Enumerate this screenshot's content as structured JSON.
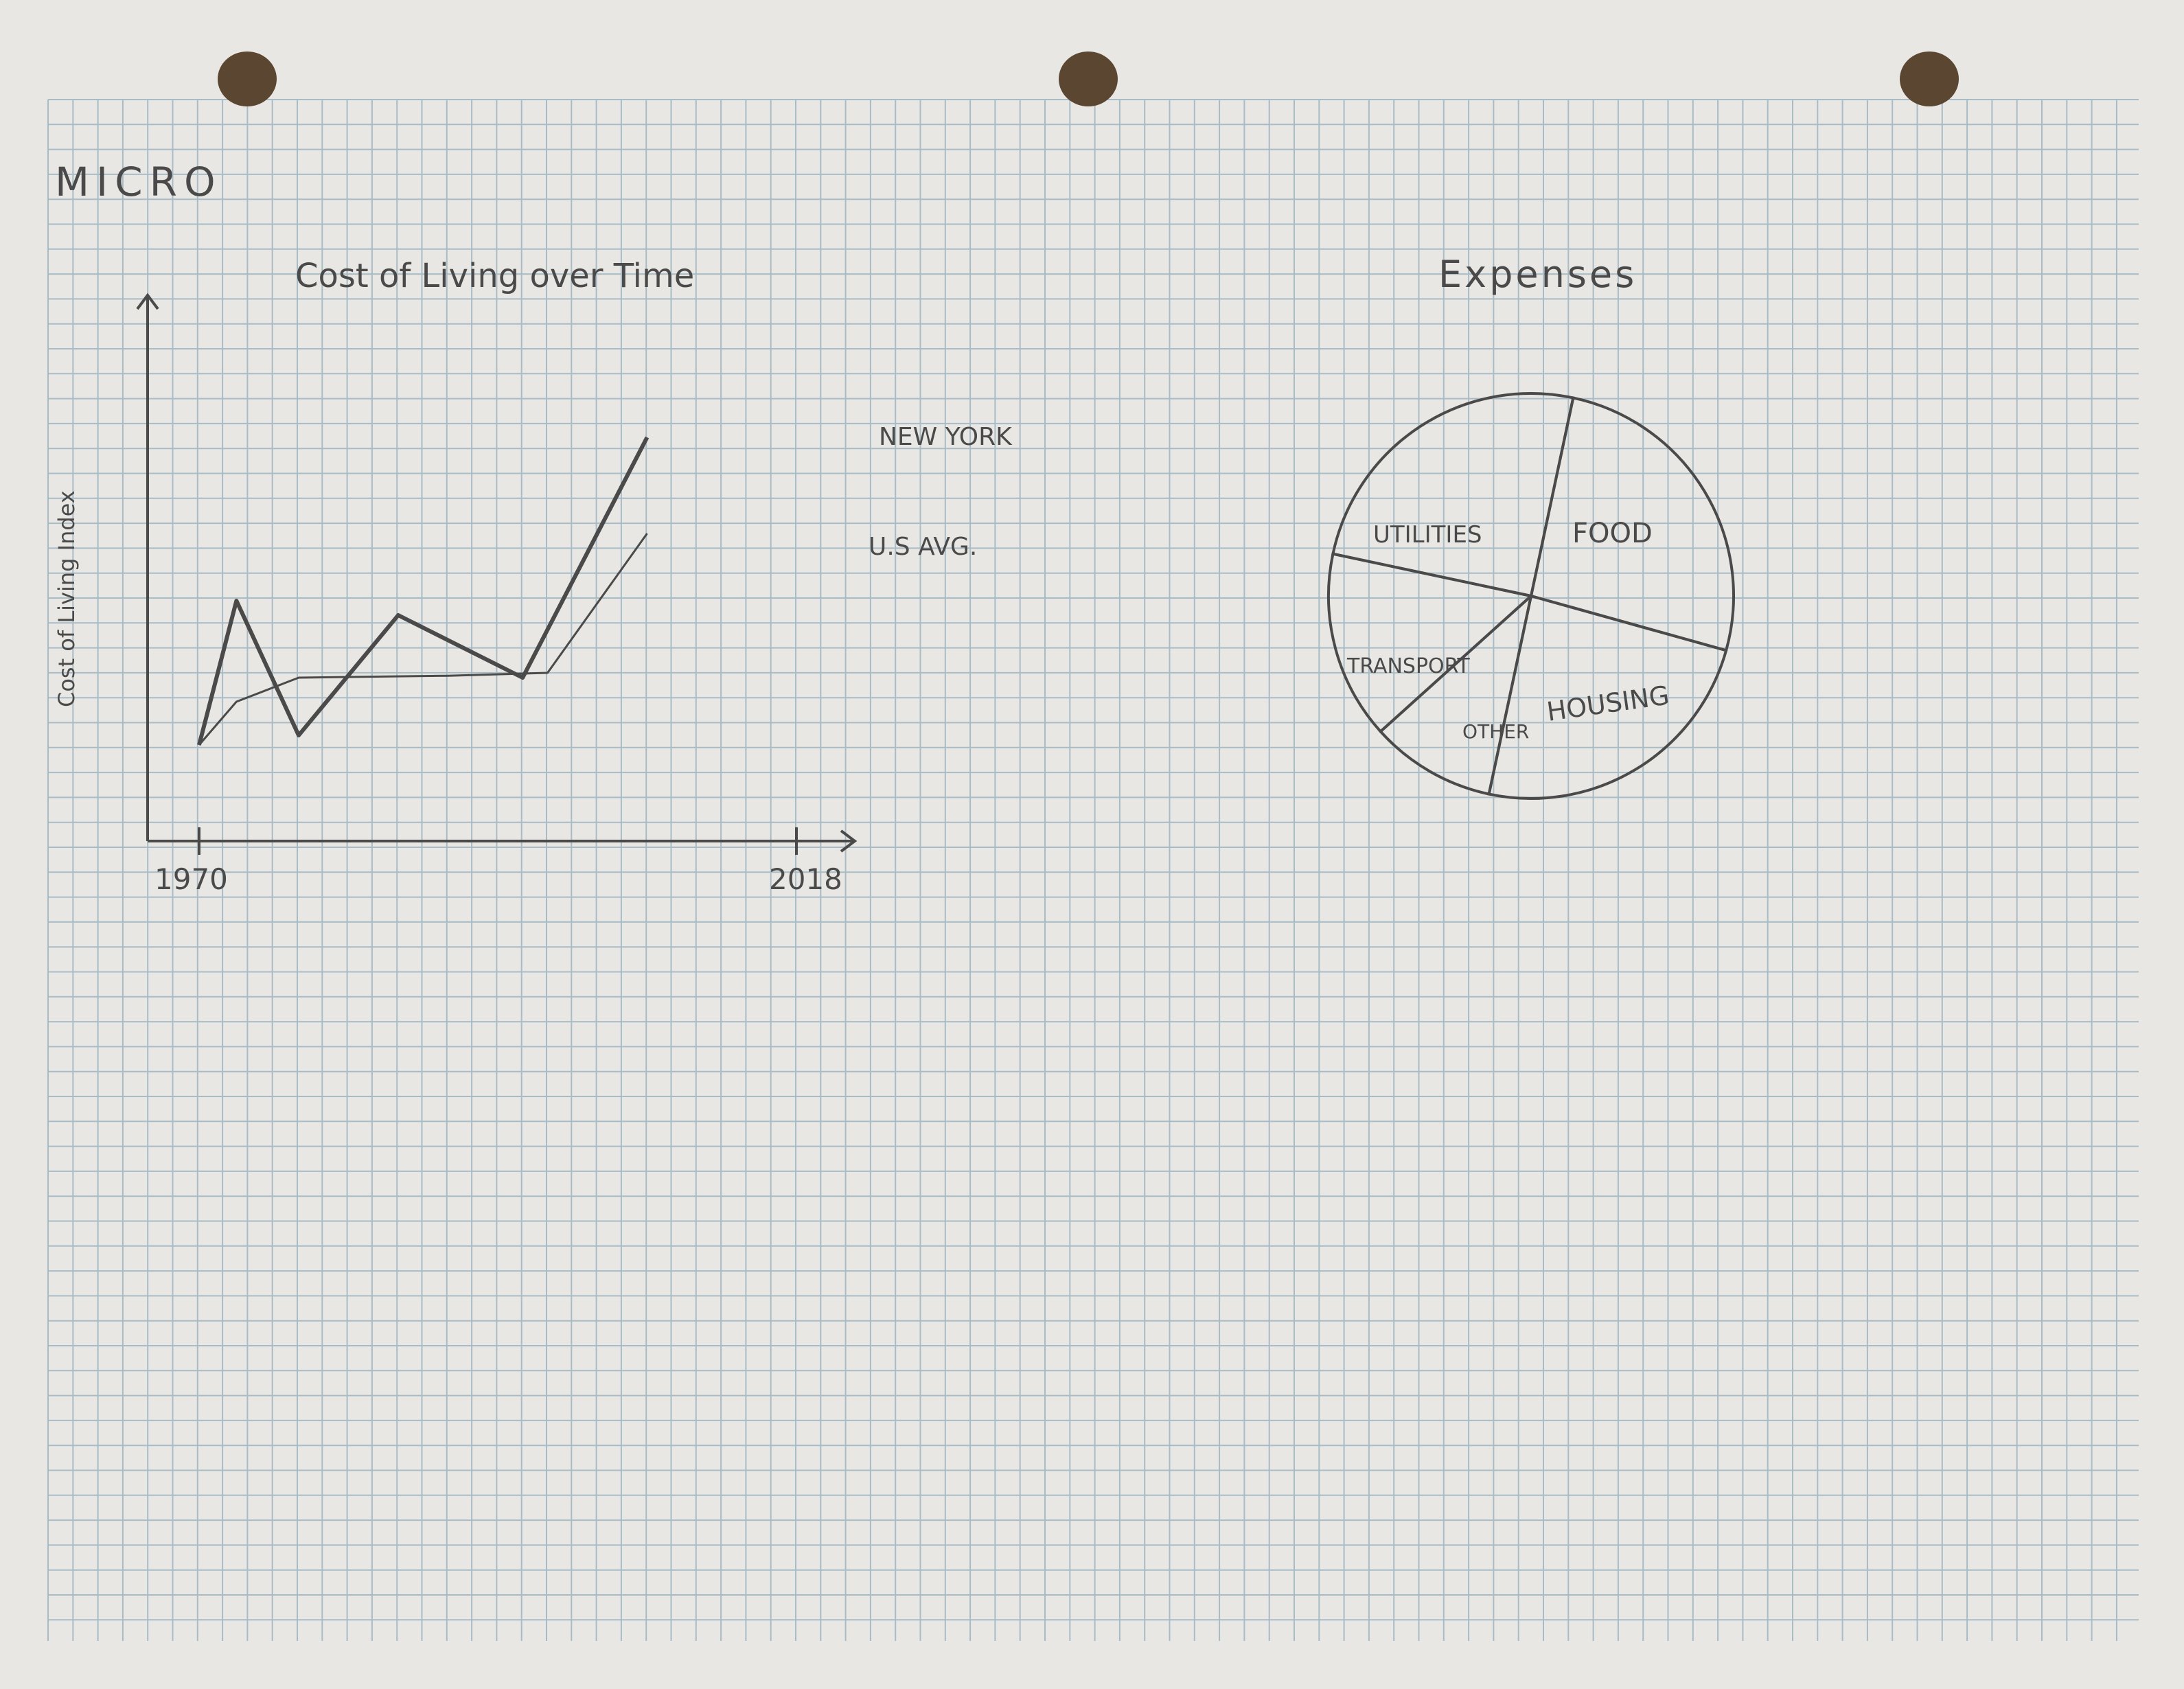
{
  "page": {
    "heading": "MICRO",
    "colors": {
      "paper": "#e9e7e3",
      "grid": "#a9bcc6",
      "pencil": "#4a4a4a",
      "hole": "#5b4632"
    }
  },
  "chart_data": [
    {
      "type": "line",
      "title": "Cost of Living over Time",
      "xlabel": "",
      "ylabel": "Cost of Living Index",
      "x_ticks": [
        "1970",
        "2018"
      ],
      "series": [
        {
          "name": "NEW YORK",
          "points": [
            [
              1970,
              1.0
            ],
            [
              1973,
              2.5
            ],
            [
              1978,
              1.1
            ],
            [
              1986,
              2.35
            ],
            [
              1996,
              1.7
            ],
            [
              2006,
              4.2
            ]
          ]
        },
        {
          "name": "U.S AVG.",
          "points": [
            [
              1970,
              1.0
            ],
            [
              1973,
              1.45
            ],
            [
              1978,
              1.7
            ],
            [
              1990,
              1.72
            ],
            [
              1998,
              1.75
            ],
            [
              2006,
              3.2
            ]
          ]
        }
      ],
      "grid": true
    },
    {
      "type": "pie",
      "title": "Expenses",
      "labels": [
        "FOOD",
        "HOUSING",
        "OTHER",
        "TRANSPORT",
        "UTILITIES"
      ],
      "values": [
        26,
        24,
        10,
        15,
        25
      ]
    }
  ]
}
